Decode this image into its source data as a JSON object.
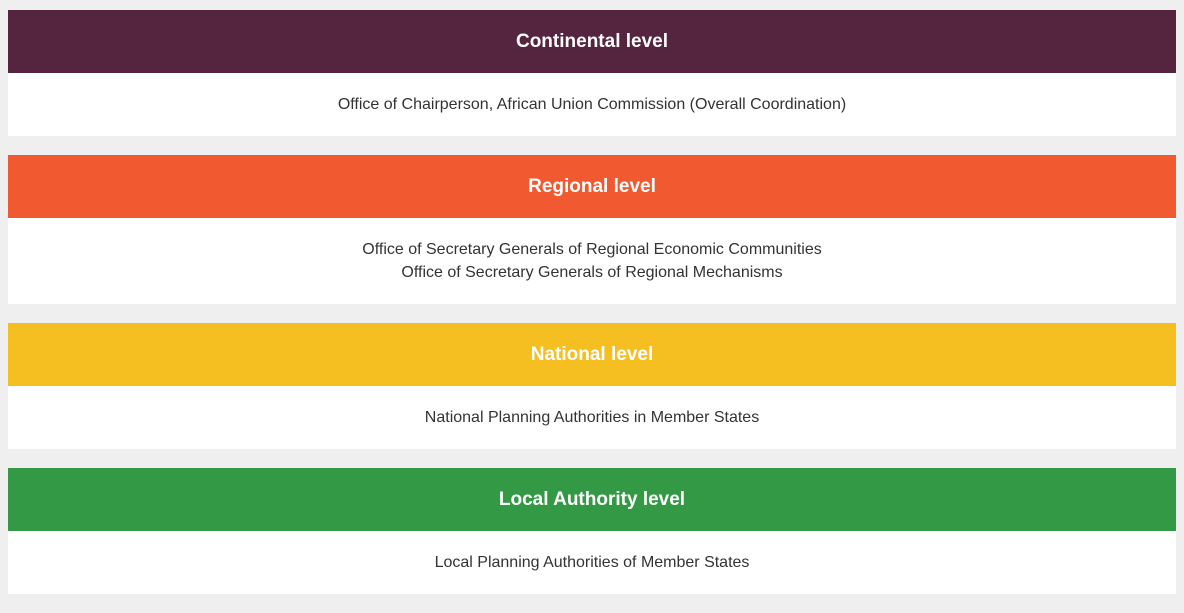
{
  "levels": [
    {
      "title": "Continental level",
      "color": "#55243f",
      "lines": [
        "Office of Chairperson, African Union Commission (Overall Coordination)"
      ]
    },
    {
      "title": "Regional level",
      "color": "#f15a30",
      "lines": [
        "Office of Secretary Generals of Regional Economic Communities",
        "Office of Secretary Generals of Regional Mechanisms"
      ]
    },
    {
      "title": "National level",
      "color": "#f5bf21",
      "lines": [
        "National Planning Authorities in Member States"
      ]
    },
    {
      "title": "Local Authority level",
      "color": "#339944",
      "lines": [
        "Local Planning Authorities of Member States"
      ]
    }
  ]
}
